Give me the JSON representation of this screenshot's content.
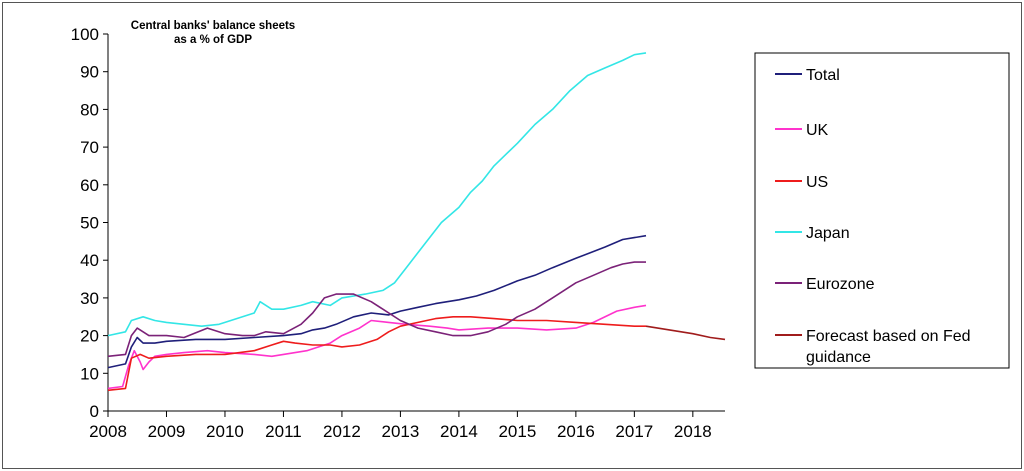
{
  "chart_data": {
    "type": "line",
    "title_lines": [
      "Central banks' balance sheets",
      "as a % of GDP"
    ],
    "xlabel": "",
    "ylabel": "",
    "xlim": [
      2008,
      2018.55
    ],
    "ylim": [
      0,
      100
    ],
    "x_ticks": [
      2008,
      2009,
      2010,
      2011,
      2012,
      2013,
      2014,
      2015,
      2016,
      2017,
      2018
    ],
    "x_tick_labels": [
      "2008",
      "2009",
      "2010",
      "2011",
      "2012",
      "2013",
      "2014",
      "2015",
      "2016",
      "2017",
      "2018"
    ],
    "y_ticks": [
      0,
      10,
      20,
      30,
      40,
      50,
      60,
      70,
      80,
      90,
      100
    ],
    "y_tick_labels": [
      "0",
      "10",
      "20",
      "30",
      "40",
      "50",
      "60",
      "70",
      "80",
      "90",
      "100"
    ],
    "grid": false,
    "legend_position": "right",
    "series": [
      {
        "name": "Total",
        "color": "#1f1f7a",
        "points": [
          [
            2008.0,
            11.5
          ],
          [
            2008.3,
            12.5
          ],
          [
            2008.4,
            17
          ],
          [
            2008.5,
            19.5
          ],
          [
            2008.6,
            18
          ],
          [
            2008.8,
            18
          ],
          [
            2009.0,
            18.5
          ],
          [
            2009.5,
            19
          ],
          [
            2010.0,
            19
          ],
          [
            2010.5,
            19.5
          ],
          [
            2011.0,
            20
          ],
          [
            2011.3,
            20.5
          ],
          [
            2011.5,
            21.5
          ],
          [
            2011.7,
            22
          ],
          [
            2011.9,
            23
          ],
          [
            2012.2,
            25
          ],
          [
            2012.5,
            26
          ],
          [
            2012.8,
            25.5
          ],
          [
            2013.0,
            26.5
          ],
          [
            2013.3,
            27.5
          ],
          [
            2013.6,
            28.5
          ],
          [
            2014.0,
            29.5
          ],
          [
            2014.3,
            30.5
          ],
          [
            2014.6,
            32
          ],
          [
            2015.0,
            34.5
          ],
          [
            2015.3,
            36
          ],
          [
            2015.6,
            38
          ],
          [
            2016.0,
            40.5
          ],
          [
            2016.5,
            43.5
          ],
          [
            2016.8,
            45.5
          ],
          [
            2017.0,
            46
          ],
          [
            2017.2,
            46.5
          ]
        ]
      },
      {
        "name": "UK",
        "color": "#ff33cc",
        "points": [
          [
            2008.0,
            6
          ],
          [
            2008.25,
            6.5
          ],
          [
            2008.35,
            12
          ],
          [
            2008.45,
            16
          ],
          [
            2008.55,
            13
          ],
          [
            2008.6,
            11
          ],
          [
            2008.7,
            13
          ],
          [
            2008.8,
            14.5
          ],
          [
            2009.0,
            15
          ],
          [
            2009.3,
            15.5
          ],
          [
            2009.7,
            16
          ],
          [
            2010.0,
            15.5
          ],
          [
            2010.5,
            15
          ],
          [
            2010.8,
            14.5
          ],
          [
            2011.0,
            15
          ],
          [
            2011.4,
            16
          ],
          [
            2011.8,
            18
          ],
          [
            2012.0,
            20
          ],
          [
            2012.3,
            22
          ],
          [
            2012.5,
            24
          ],
          [
            2012.8,
            23.5
          ],
          [
            2013.1,
            23
          ],
          [
            2013.5,
            22.5
          ],
          [
            2013.8,
            22
          ],
          [
            2014.0,
            21.5
          ],
          [
            2014.5,
            22
          ],
          [
            2015.0,
            22
          ],
          [
            2015.5,
            21.5
          ],
          [
            2016.0,
            22
          ],
          [
            2016.3,
            23.5
          ],
          [
            2016.7,
            26.5
          ],
          [
            2017.0,
            27.5
          ],
          [
            2017.2,
            28
          ]
        ]
      },
      {
        "name": "US",
        "color": "#ee1c1c",
        "points": [
          [
            2008.0,
            5.5
          ],
          [
            2008.3,
            6
          ],
          [
            2008.4,
            14
          ],
          [
            2008.55,
            15
          ],
          [
            2008.7,
            14
          ],
          [
            2009.0,
            14.5
          ],
          [
            2009.5,
            15
          ],
          [
            2010.0,
            15
          ],
          [
            2010.5,
            16
          ],
          [
            2010.8,
            17.5
          ],
          [
            2011.0,
            18.5
          ],
          [
            2011.2,
            18
          ],
          [
            2011.5,
            17.5
          ],
          [
            2011.8,
            17.5
          ],
          [
            2012.0,
            17
          ],
          [
            2012.3,
            17.5
          ],
          [
            2012.6,
            19
          ],
          [
            2012.8,
            21
          ],
          [
            2013.0,
            22.5
          ],
          [
            2013.3,
            23.5
          ],
          [
            2013.6,
            24.5
          ],
          [
            2013.9,
            25
          ],
          [
            2014.2,
            25
          ],
          [
            2014.6,
            24.5
          ],
          [
            2015.0,
            24
          ],
          [
            2015.5,
            24
          ],
          [
            2016.0,
            23.5
          ],
          [
            2016.5,
            23
          ],
          [
            2017.0,
            22.5
          ],
          [
            2017.2,
            22.5
          ]
        ]
      },
      {
        "name": "Japan",
        "color": "#33e6e6",
        "points": [
          [
            2008.0,
            20
          ],
          [
            2008.3,
            21
          ],
          [
            2008.4,
            24
          ],
          [
            2008.6,
            25
          ],
          [
            2008.8,
            24
          ],
          [
            2009.0,
            23.5
          ],
          [
            2009.3,
            23
          ],
          [
            2009.6,
            22.5
          ],
          [
            2009.9,
            23
          ],
          [
            2010.0,
            23.5
          ],
          [
            2010.3,
            25
          ],
          [
            2010.5,
            26
          ],
          [
            2010.6,
            29
          ],
          [
            2010.8,
            27
          ],
          [
            2011.0,
            27
          ],
          [
            2011.3,
            28
          ],
          [
            2011.5,
            29
          ],
          [
            2011.8,
            28
          ],
          [
            2012.0,
            30
          ],
          [
            2012.4,
            31
          ],
          [
            2012.7,
            32
          ],
          [
            2012.9,
            34
          ],
          [
            2013.1,
            38
          ],
          [
            2013.4,
            44
          ],
          [
            2013.7,
            50
          ],
          [
            2014.0,
            54
          ],
          [
            2014.2,
            58
          ],
          [
            2014.4,
            61
          ],
          [
            2014.6,
            65
          ],
          [
            2014.8,
            68
          ],
          [
            2015.0,
            71
          ],
          [
            2015.3,
            76
          ],
          [
            2015.6,
            80
          ],
          [
            2015.9,
            85
          ],
          [
            2016.2,
            89
          ],
          [
            2016.5,
            91
          ],
          [
            2016.8,
            93
          ],
          [
            2017.0,
            94.5
          ],
          [
            2017.2,
            95
          ]
        ]
      },
      {
        "name": "Eurozone",
        "color": "#7b2278",
        "points": [
          [
            2008.0,
            14.5
          ],
          [
            2008.3,
            15
          ],
          [
            2008.4,
            20
          ],
          [
            2008.5,
            22
          ],
          [
            2008.7,
            20
          ],
          [
            2008.9,
            20
          ],
          [
            2009.0,
            20
          ],
          [
            2009.3,
            19.5
          ],
          [
            2009.7,
            22
          ],
          [
            2010.0,
            20.5
          ],
          [
            2010.3,
            20
          ],
          [
            2010.5,
            20
          ],
          [
            2010.7,
            21
          ],
          [
            2011.0,
            20.5
          ],
          [
            2011.3,
            23
          ],
          [
            2011.5,
            26
          ],
          [
            2011.7,
            30
          ],
          [
            2011.9,
            31
          ],
          [
            2012.2,
            31
          ],
          [
            2012.5,
            29
          ],
          [
            2012.7,
            27
          ],
          [
            2013.0,
            24
          ],
          [
            2013.3,
            22
          ],
          [
            2013.6,
            21
          ],
          [
            2013.9,
            20
          ],
          [
            2014.2,
            20
          ],
          [
            2014.5,
            21
          ],
          [
            2014.8,
            23
          ],
          [
            2015.0,
            25
          ],
          [
            2015.3,
            27
          ],
          [
            2015.6,
            30
          ],
          [
            2016.0,
            34
          ],
          [
            2016.3,
            36
          ],
          [
            2016.6,
            38
          ],
          [
            2016.8,
            39
          ],
          [
            2017.0,
            39.5
          ],
          [
            2017.2,
            39.5
          ]
        ]
      },
      {
        "name": "Forecast based on Fed guidance",
        "color": "#a01c1c",
        "points": [
          [
            2017.2,
            22.5
          ],
          [
            2017.6,
            21.5
          ],
          [
            2018.0,
            20.5
          ],
          [
            2018.3,
            19.5
          ],
          [
            2018.55,
            19
          ]
        ]
      }
    ]
  }
}
